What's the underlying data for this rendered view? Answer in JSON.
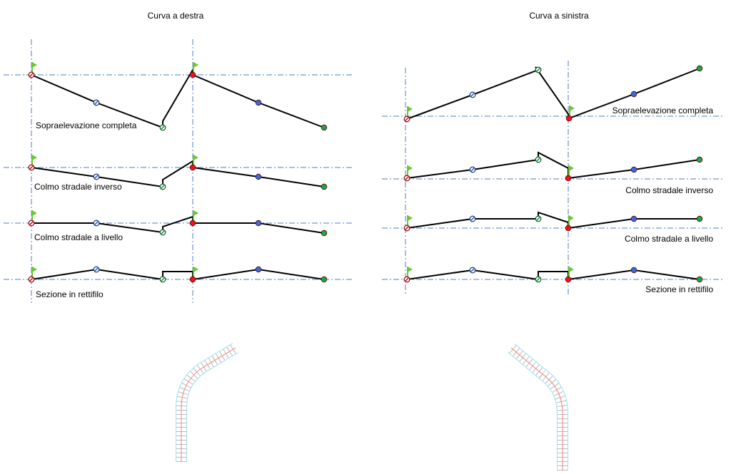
{
  "panels": [
    {
      "title": "Curva a destra",
      "rows": [
        {
          "label": "Sopraelevazione completa"
        },
        {
          "label": "Colmo stradale inverso"
        },
        {
          "label": "Colmo stradale a livello"
        },
        {
          "label": "Sezione in rettifilo"
        }
      ]
    },
    {
      "title": "Curva a sinistra",
      "rows": [
        {
          "label": "Sopraelevazione completa"
        },
        {
          "label": "Colmo stradale inverso"
        },
        {
          "label": "Colmo stradale a livello"
        },
        {
          "label": "Sezione in rettifilo"
        }
      ]
    }
  ],
  "colors": {
    "axis": "#4f7fc8",
    "marker_red": "#e8161b",
    "marker_blue": "#2f6fe0",
    "marker_green": "#1aa84a",
    "flag": "#6cc832",
    "road_edge": "#9fe0f0",
    "road_center": "#f08080"
  },
  "icons": {
    "flag": "flag-icon",
    "marker": "point-marker-icon"
  }
}
